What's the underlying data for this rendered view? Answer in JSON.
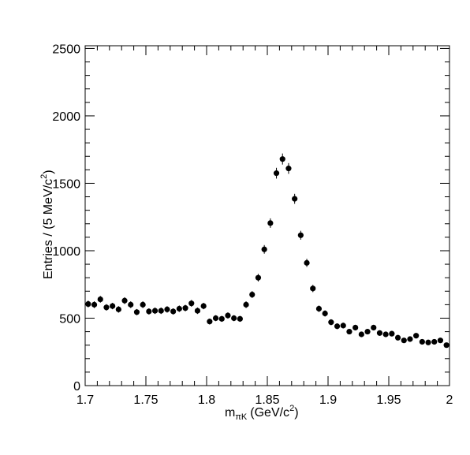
{
  "chart_data": {
    "type": "scatter",
    "style": "points-with-error-bars",
    "xlabel_main": "m",
    "xlabel_sub": "πK",
    "xlabel_unit_pre": "(GeV/c",
    "xlabel_unit_sup": "2",
    "xlabel_unit_post": ")",
    "ylabel_main": "Entries / (5 MeV/c",
    "ylabel_sup": "2",
    "ylabel_post": ")",
    "xlim": [
      1.7,
      2.0
    ],
    "ylim": [
      0,
      2520
    ],
    "x_ticks": [
      1.7,
      1.75,
      1.8,
      1.85,
      1.9,
      1.95,
      2.0
    ],
    "x_tick_labels": [
      "1.7",
      "1.75",
      "1.8",
      "1.85",
      "1.9",
      "1.95",
      "2"
    ],
    "y_ticks": [
      0,
      500,
      1000,
      1500,
      2000,
      2500
    ],
    "y_tick_labels": [
      "0",
      "500",
      "1000",
      "1500",
      "2000",
      "2500"
    ],
    "grid": false,
    "legend": "none",
    "marker_color": "#000000",
    "x": [
      1.7025,
      1.7075,
      1.7125,
      1.7175,
      1.7225,
      1.7275,
      1.7325,
      1.7375,
      1.7425,
      1.7475,
      1.7525,
      1.7575,
      1.7625,
      1.7675,
      1.7725,
      1.7775,
      1.7825,
      1.7875,
      1.7925,
      1.7975,
      1.8025,
      1.8075,
      1.8125,
      1.8175,
      1.8225,
      1.8275,
      1.8325,
      1.8375,
      1.8425,
      1.8475,
      1.8525,
      1.8575,
      1.8625,
      1.8675,
      1.8725,
      1.8775,
      1.8825,
      1.8875,
      1.8925,
      1.8975,
      1.9025,
      1.9075,
      1.9125,
      1.9175,
      1.9225,
      1.9275,
      1.9325,
      1.9375,
      1.9425,
      1.9475,
      1.9525,
      1.9575,
      1.9625,
      1.9675,
      1.9725,
      1.9775,
      1.9825,
      1.9875,
      1.9925,
      1.9975
    ],
    "y": [
      605,
      600,
      640,
      580,
      590,
      565,
      630,
      600,
      545,
      600,
      550,
      555,
      555,
      565,
      550,
      570,
      575,
      610,
      555,
      590,
      475,
      500,
      495,
      520,
      500,
      495,
      600,
      675,
      800,
      1010,
      1205,
      1575,
      1680,
      1610,
      1385,
      1115,
      910,
      720,
      570,
      535,
      470,
      440,
      445,
      400,
      430,
      380,
      400,
      430,
      390,
      380,
      385,
      355,
      335,
      345,
      370,
      325,
      320,
      325,
      335,
      300
    ],
    "y_err": [
      25,
      25,
      25,
      24,
      24,
      24,
      25,
      25,
      23,
      25,
      23,
      24,
      24,
      24,
      23,
      24,
      24,
      25,
      24,
      24,
      22,
      22,
      22,
      23,
      22,
      22,
      25,
      26,
      28,
      32,
      35,
      40,
      41,
      40,
      37,
      33,
      30,
      27,
      24,
      23,
      22,
      21,
      21,
      20,
      21,
      19,
      20,
      21,
      20,
      19,
      20,
      19,
      18,
      19,
      19,
      18,
      18,
      18,
      18,
      17
    ]
  }
}
